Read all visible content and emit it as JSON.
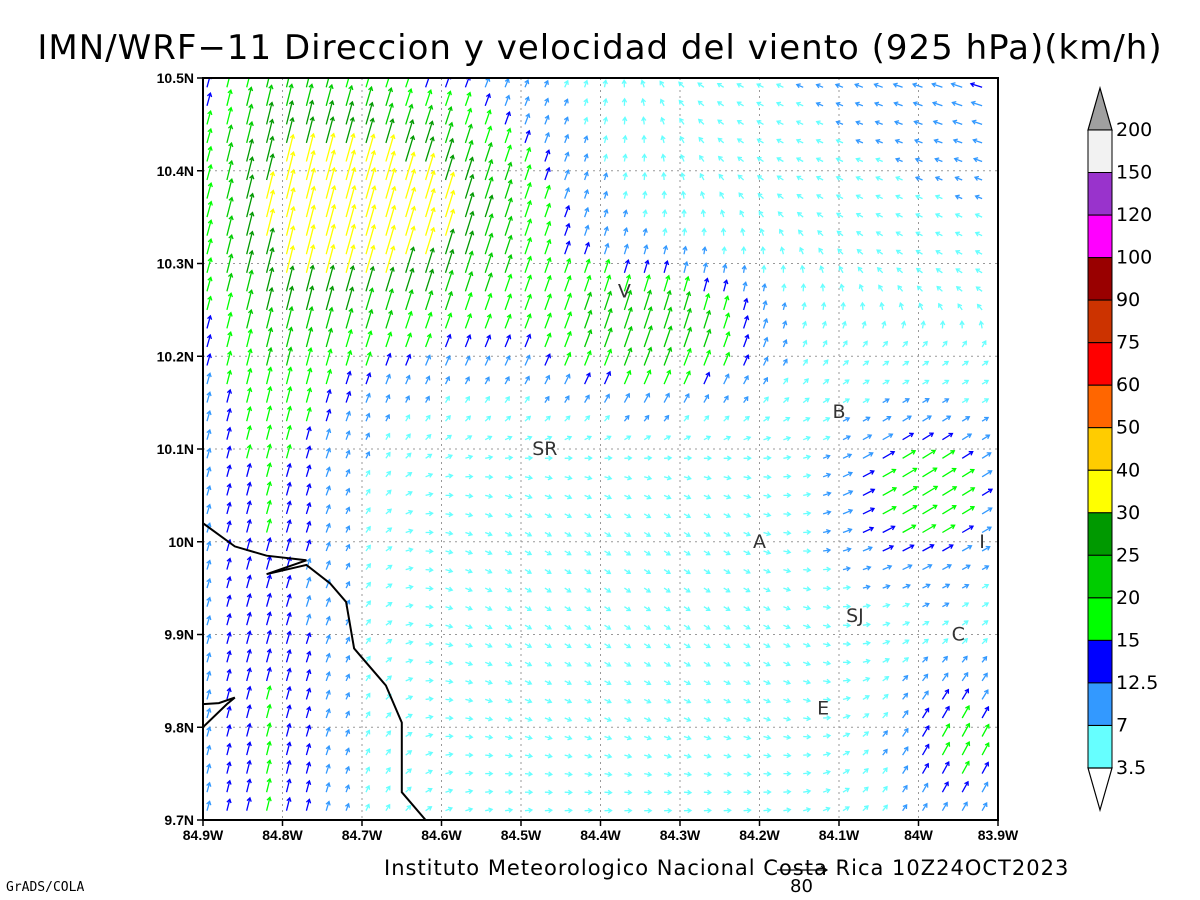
{
  "title": "IMN/WRF−11 Direccion y velocidad del viento (925 hPa)(km/h)",
  "footer": {
    "credit": "Instituto Meteorologico Nacional Costa Rica  10Z24OCT2023",
    "software": "GrADS/COLA",
    "reference_vector_label": "80"
  },
  "chart_data": {
    "type": "vector_field",
    "units": "km/h",
    "level": "925 hPa",
    "x_ticks": [
      "84.9W",
      "84.8W",
      "84.7W",
      "84.6W",
      "84.5W",
      "84.4W",
      "84.3W",
      "84.2W",
      "84.1W",
      "84W",
      "83.9W"
    ],
    "y_ticks": [
      "10.5N",
      "10.4N",
      "10.3N",
      "10.2N",
      "10.1N",
      "10N",
      "9.9N",
      "9.8N",
      "9.7N"
    ],
    "xlim": [
      -84.9,
      -83.9
    ],
    "ylim": [
      9.7,
      10.5
    ],
    "grid": true,
    "colorbar": {
      "labels": [
        "200",
        "150",
        "120",
        "100",
        "90",
        "75",
        "60",
        "50",
        "40",
        "30",
        "25",
        "20",
        "15",
        "12.5",
        "7",
        "3.5"
      ],
      "colors": [
        "#f2f2f2",
        "#9933cc",
        "#ff00ff",
        "#990000",
        "#cc3300",
        "#ff0000",
        "#ff6600",
        "#ffcc00",
        "#ffff00",
        "#009900",
        "#00cc00",
        "#00ff00",
        "#0000ff",
        "#3399ff",
        "#66ffff"
      ],
      "over_color": "#a0a0a0"
    },
    "station_labels": [
      {
        "text": "V",
        "lon": -84.37,
        "lat": 10.27
      },
      {
        "text": "B",
        "lon": -84.1,
        "lat": 10.14
      },
      {
        "text": "SR",
        "lon": -84.47,
        "lat": 10.1
      },
      {
        "text": "A",
        "lon": -84.2,
        "lat": 10.0
      },
      {
        "text": "I",
        "lon": -83.92,
        "lat": 10.0
      },
      {
        "text": "SJ",
        "lon": -84.08,
        "lat": 9.92
      },
      {
        "text": "C",
        "lon": -83.95,
        "lat": 9.9
      },
      {
        "text": "E",
        "lon": -84.12,
        "lat": 9.82
      }
    ]
  }
}
